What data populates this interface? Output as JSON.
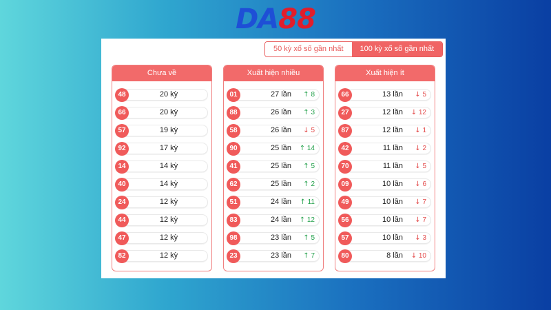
{
  "logo": {
    "part1": "DA",
    "part2": "88"
  },
  "tabs": [
    {
      "label": "50 kỳ xổ số gần nhất",
      "active": false
    },
    {
      "label": "100 kỳ xổ số gần nhất",
      "active": true
    }
  ],
  "columns": [
    {
      "title": "Chưa về",
      "rows": [
        {
          "num": "48",
          "value": "20 kỳ"
        },
        {
          "num": "66",
          "value": "20 kỳ"
        },
        {
          "num": "57",
          "value": "19 kỳ"
        },
        {
          "num": "92",
          "value": "17 kỳ"
        },
        {
          "num": "14",
          "value": "14 kỳ"
        },
        {
          "num": "40",
          "value": "14 kỳ"
        },
        {
          "num": "24",
          "value": "12 kỳ"
        },
        {
          "num": "44",
          "value": "12 kỳ"
        },
        {
          "num": "47",
          "value": "12 kỳ"
        },
        {
          "num": "82",
          "value": "12 kỳ"
        }
      ]
    },
    {
      "title": "Xuất hiện nhiều",
      "rows": [
        {
          "num": "01",
          "value": "27 lần",
          "dir": "up",
          "delta": "8"
        },
        {
          "num": "88",
          "value": "26 lần",
          "dir": "up",
          "delta": "3"
        },
        {
          "num": "58",
          "value": "26 lần",
          "dir": "down",
          "delta": "5"
        },
        {
          "num": "90",
          "value": "25 lần",
          "dir": "up",
          "delta": "14"
        },
        {
          "num": "41",
          "value": "25 lần",
          "dir": "up",
          "delta": "5"
        },
        {
          "num": "62",
          "value": "25 lần",
          "dir": "up",
          "delta": "2"
        },
        {
          "num": "51",
          "value": "24 lần",
          "dir": "up",
          "delta": "11"
        },
        {
          "num": "83",
          "value": "24 lần",
          "dir": "up",
          "delta": "12"
        },
        {
          "num": "98",
          "value": "23 lần",
          "dir": "up",
          "delta": "5"
        },
        {
          "num": "23",
          "value": "23 lần",
          "dir": "up",
          "delta": "7"
        }
      ]
    },
    {
      "title": "Xuất hiện ít",
      "rows": [
        {
          "num": "66",
          "value": "13 lần",
          "dir": "down",
          "delta": "5"
        },
        {
          "num": "27",
          "value": "12 lần",
          "dir": "down",
          "delta": "12"
        },
        {
          "num": "87",
          "value": "12 lần",
          "dir": "down",
          "delta": "1"
        },
        {
          "num": "42",
          "value": "11 lần",
          "dir": "down",
          "delta": "2"
        },
        {
          "num": "70",
          "value": "11 lần",
          "dir": "down",
          "delta": "5"
        },
        {
          "num": "09",
          "value": "10 lần",
          "dir": "down",
          "delta": "6"
        },
        {
          "num": "49",
          "value": "10 lần",
          "dir": "down",
          "delta": "7"
        },
        {
          "num": "56",
          "value": "10 lần",
          "dir": "down",
          "delta": "7"
        },
        {
          "num": "57",
          "value": "10 lần",
          "dir": "down",
          "delta": "3"
        },
        {
          "num": "80",
          "value": "8 lần",
          "dir": "down",
          "delta": "10"
        }
      ]
    }
  ],
  "colors": {
    "accent": "#f26a6a",
    "up": "#22a04a",
    "down": "#e34a4a"
  }
}
